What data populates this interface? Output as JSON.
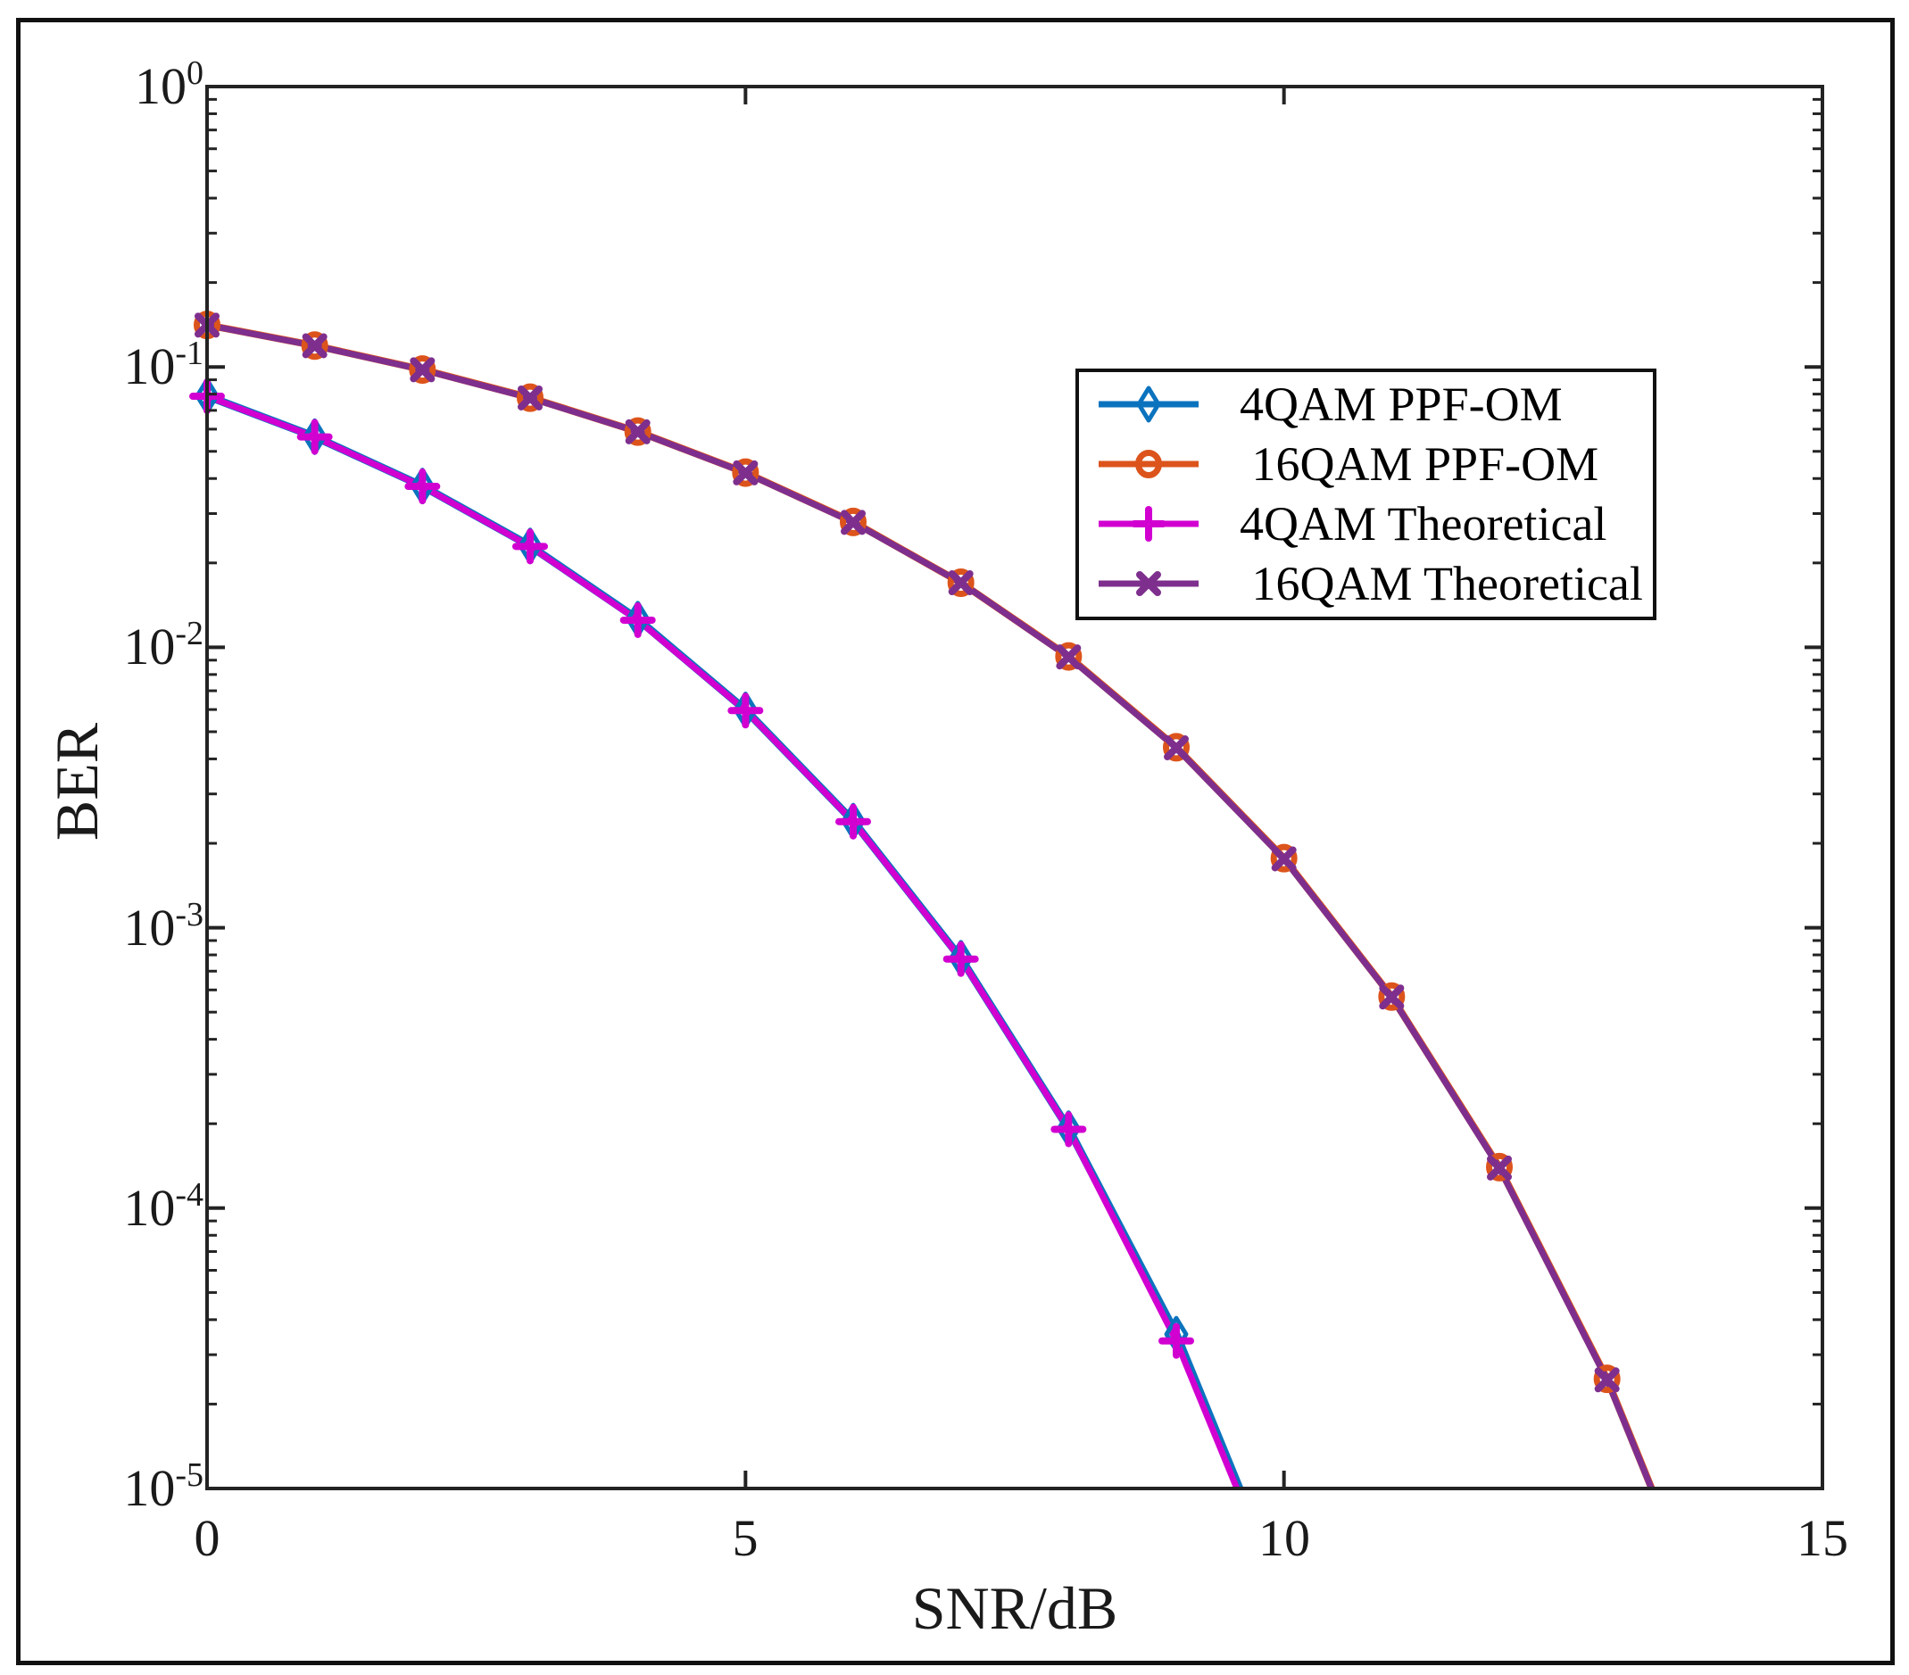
{
  "figure": {
    "background": "#ffffff",
    "border_color": "#111111",
    "axis_color": "#232323",
    "text_color": "#1a1a1a"
  },
  "legend": {
    "position": "upper-right-inside",
    "items": [
      "4QAM PPF-OM",
      " 16QAM PPF-OM",
      "4QAM Theoretical",
      " 16QAM Theoretical"
    ]
  },
  "chart_data": {
    "type": "line",
    "title": "",
    "xlabel": "SNR/dB",
    "ylabel": "BER",
    "xlim": [
      0,
      15
    ],
    "ylim": [
      1e-05,
      1
    ],
    "y_scale": "log",
    "grid": false,
    "x_ticks": [
      "0",
      "5",
      "10",
      "15"
    ],
    "x_tick_values": [
      0,
      5,
      10,
      15
    ],
    "y_tick_base": "10",
    "y_tick_exponents": [
      "0",
      "-1",
      "-2",
      "-3",
      "-4",
      "-5"
    ],
    "series": [
      {
        "name": "4QAM PPF-OM",
        "color": "#0b73be",
        "marker": "diamond",
        "line_style": "solid",
        "x": [
          0,
          1,
          2,
          3,
          4,
          5,
          6,
          7,
          8,
          9,
          10
        ],
        "y": [
          0.0788,
          0.0564,
          0.0376,
          0.023,
          0.0126,
          0.00598,
          0.0024,
          0.000778,
          0.000192,
          3.55e-05,
          4.1e-06
        ]
      },
      {
        "name": "16QAM PPF-OM",
        "color": "#dc541c",
        "marker": "circle",
        "line_style": "solid",
        "x": [
          0,
          1,
          2,
          3,
          4,
          5,
          6,
          7,
          8,
          9,
          10,
          11,
          12,
          13,
          14
        ],
        "y": [
          0.1412,
          0.1192,
          0.0979,
          0.0777,
          0.0588,
          0.042,
          0.028,
          0.017,
          0.00928,
          0.0044,
          0.00177,
          0.000568,
          0.00014,
          2.46e-05,
          2.8e-06
        ]
      },
      {
        "name": "4QAM Theoretical",
        "color": "#d100d1",
        "marker": "plus",
        "line_style": "solid",
        "x": [
          0,
          1,
          2,
          3,
          4,
          5,
          6,
          7,
          8,
          9,
          10
        ],
        "y": [
          0.0786,
          0.0563,
          0.0375,
          0.0229,
          0.0125,
          0.00595,
          0.00239,
          0.000773,
          0.000191,
          3.36e-05,
          3.9e-06
        ]
      },
      {
        "name": "16QAM Theoretical",
        "color": "#7e2f8e",
        "marker": "x",
        "line_style": "solid",
        "x": [
          0,
          1,
          2,
          3,
          4,
          5,
          6,
          7,
          8,
          9,
          10,
          11,
          12,
          13,
          14
        ],
        "y": [
          0.141,
          0.119,
          0.0977,
          0.0775,
          0.0587,
          0.0419,
          0.0279,
          0.017,
          0.00924,
          0.00438,
          0.00176,
          0.000566,
          0.000139,
          2.44e-05,
          2.8e-06
        ]
      }
    ]
  }
}
